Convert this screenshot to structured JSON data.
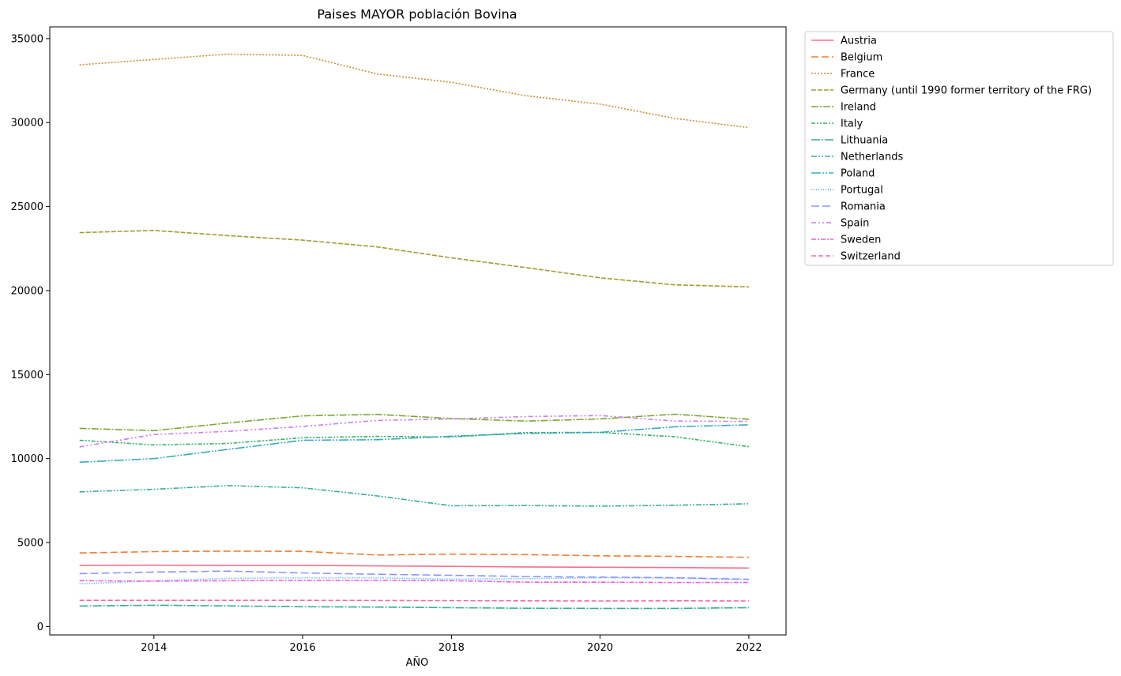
{
  "chart_data": {
    "type": "line",
    "title": "Paises MAYOR población Bovina",
    "xlabel": "AÑO",
    "ylabel": "",
    "xlim": [
      2012.6,
      2022.5
    ],
    "ylim": [
      -500,
      35700
    ],
    "x_ticks": [
      2014,
      2016,
      2018,
      2020,
      2022
    ],
    "y_ticks": [
      0,
      5000,
      10000,
      15000,
      20000,
      25000,
      30000,
      35000
    ],
    "legend_position": "outside-top-right",
    "grid": false,
    "x": [
      2013,
      2014,
      2015,
      2016,
      2017,
      2018,
      2019,
      2020,
      2021,
      2022
    ],
    "series": [
      {
        "name": "Austria",
        "color": "#f77189",
        "dash": "",
        "values": [
          3640,
          3650,
          3640,
          3640,
          3610,
          3580,
          3550,
          3530,
          3510,
          3480
        ]
      },
      {
        "name": "Belgium",
        "color": "#f07c35",
        "dash": "9,4",
        "values": [
          4380,
          4460,
          4490,
          4480,
          4260,
          4310,
          4280,
          4210,
          4180,
          4120
        ]
      },
      {
        "name": "France",
        "color": "#c78e32",
        "dash": "2,2",
        "values": [
          33440,
          33760,
          34080,
          34000,
          32900,
          32400,
          31600,
          31100,
          30250,
          29700
        ]
      },
      {
        "name": "Germany (until 1990 former territory of the FRG)",
        "color": "#a59c31",
        "dash": "6,2",
        "values": [
          23450,
          23580,
          23270,
          23000,
          22600,
          21950,
          21370,
          20760,
          20340,
          20220
        ]
      },
      {
        "name": "Ireland",
        "color": "#7fa531",
        "dash": "9,2,2,2",
        "values": [
          11800,
          11660,
          12120,
          12540,
          12630,
          12380,
          12230,
          12360,
          12640,
          12340
        ]
      },
      {
        "name": "Italy",
        "color": "#32b165",
        "dash": "5,2,2,2,2,2",
        "values": [
          11090,
          10810,
          10900,
          11240,
          11320,
          11280,
          11550,
          11560,
          11300,
          10710
        ]
      },
      {
        "name": "Lithuania",
        "color": "#34ae91",
        "dash": "11,2,2,2",
        "values": [
          1220,
          1270,
          1230,
          1180,
          1160,
          1120,
          1090,
          1080,
          1080,
          1120
        ]
      },
      {
        "name": "Netherlands",
        "color": "#36ada4",
        "dash": "7,2,2,2,2,2",
        "values": [
          8020,
          8170,
          8390,
          8260,
          7780,
          7190,
          7200,
          7170,
          7220,
          7310
        ]
      },
      {
        "name": "Poland",
        "color": "#38aabd",
        "dash": "12,2,2,2,2,2",
        "values": [
          9780,
          10000,
          10550,
          11090,
          11120,
          11330,
          11500,
          11560,
          11890,
          12010
        ]
      },
      {
        "name": "Portugal",
        "color": "#3ba3ec",
        "dash": "1,2",
        "values": [
          2540,
          2720,
          2870,
          2900,
          2900,
          2820,
          2850,
          2900,
          2880,
          2800
        ]
      },
      {
        "name": "Romania",
        "color": "#8e97f3",
        "dash": "10,4",
        "values": [
          3150,
          3240,
          3300,
          3190,
          3110,
          3050,
          2980,
          2940,
          2910,
          2810
        ]
      },
      {
        "name": "Spain",
        "color": "#cc7af4",
        "dash": "6,3,2,3,2,3",
        "values": [
          10690,
          11430,
          11620,
          11910,
          12270,
          12360,
          12500,
          12560,
          12230,
          12210
        ]
      },
      {
        "name": "Sweden",
        "color": "#f15fd8",
        "dash": "6,2,2,2",
        "values": [
          2730,
          2700,
          2730,
          2750,
          2750,
          2730,
          2640,
          2640,
          2620,
          2620
        ]
      },
      {
        "name": "Switzerland",
        "color": "#f667ae",
        "dash": "6,3",
        "values": [
          1560,
          1560,
          1560,
          1560,
          1550,
          1540,
          1530,
          1520,
          1530,
          1520
        ]
      }
    ]
  }
}
